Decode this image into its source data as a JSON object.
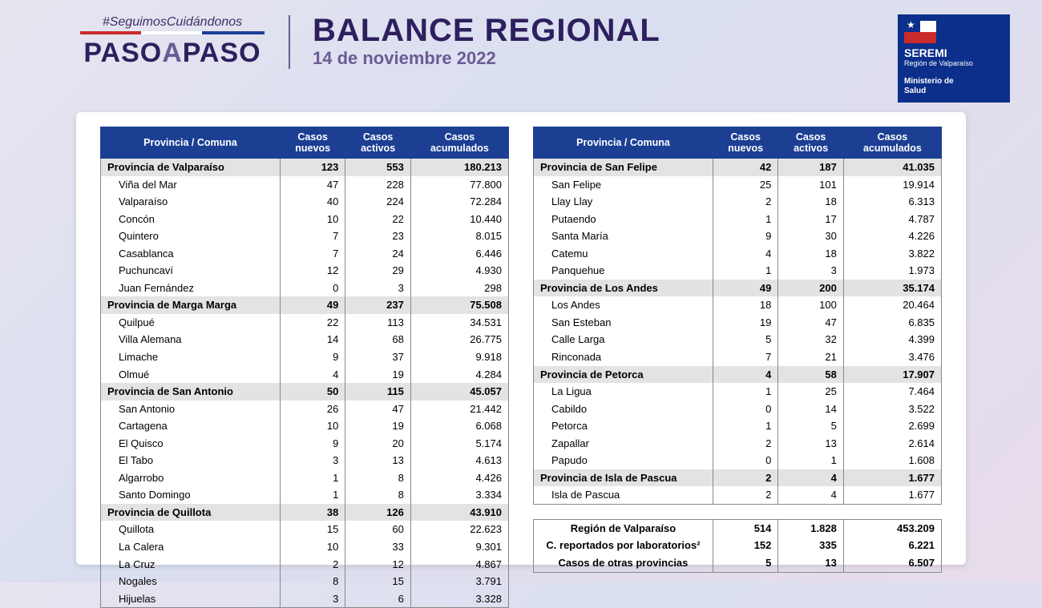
{
  "header": {
    "hashtag": "#SeguimosCuidándonos",
    "logo_paso": "PASO",
    "logo_a": "A",
    "logo_paso2": "PASO",
    "title": "BALANCE REGIONAL",
    "date": "14 de noviembre 2022"
  },
  "seremi": {
    "line1": "SEREMI",
    "line2": "Región de Valparaíso",
    "line3": "Ministerio de",
    "line4": "Salud"
  },
  "columns": {
    "c1": "Provincia / Comuna",
    "c2": "Casos nuevos",
    "c3": "Casos activos",
    "c4": "Casos acumulados"
  },
  "left_rows": [
    {
      "p": true,
      "name": "Provincia de Valparaíso",
      "n": "123",
      "a": "553",
      "ac": "180.213"
    },
    {
      "name": "Viña del Mar",
      "n": "47",
      "a": "228",
      "ac": "77.800"
    },
    {
      "name": "Valparaíso",
      "n": "40",
      "a": "224",
      "ac": "72.284"
    },
    {
      "name": "Concón",
      "n": "10",
      "a": "22",
      "ac": "10.440"
    },
    {
      "name": "Quintero",
      "n": "7",
      "a": "23",
      "ac": "8.015"
    },
    {
      "name": "Casablanca",
      "n": "7",
      "a": "24",
      "ac": "6.446"
    },
    {
      "name": "Puchuncaví",
      "n": "12",
      "a": "29",
      "ac": "4.930"
    },
    {
      "name": "Juan Fernández",
      "n": "0",
      "a": "3",
      "ac": "298"
    },
    {
      "p": true,
      "name": "Provincia de Marga Marga",
      "n": "49",
      "a": "237",
      "ac": "75.508"
    },
    {
      "name": "Quilpué",
      "n": "22",
      "a": "113",
      "ac": "34.531"
    },
    {
      "name": "Villa Alemana",
      "n": "14",
      "a": "68",
      "ac": "26.775"
    },
    {
      "name": "Limache",
      "n": "9",
      "a": "37",
      "ac": "9.918"
    },
    {
      "name": "Olmué",
      "n": "4",
      "a": "19",
      "ac": "4.284"
    },
    {
      "p": true,
      "name": "Provincia de San Antonio",
      "n": "50",
      "a": "115",
      "ac": "45.057"
    },
    {
      "name": "San Antonio",
      "n": "26",
      "a": "47",
      "ac": "21.442"
    },
    {
      "name": "Cartagena",
      "n": "10",
      "a": "19",
      "ac": "6.068"
    },
    {
      "name": "El Quisco",
      "n": "9",
      "a": "20",
      "ac": "5.174"
    },
    {
      "name": "El Tabo",
      "n": "3",
      "a": "13",
      "ac": "4.613"
    },
    {
      "name": "Algarrobo",
      "n": "1",
      "a": "8",
      "ac": "4.426"
    },
    {
      "name": "Santo Domingo",
      "n": "1",
      "a": "8",
      "ac": "3.334"
    },
    {
      "p": true,
      "name": "Provincia de Quillota",
      "n": "38",
      "a": "126",
      "ac": "43.910"
    },
    {
      "name": "Quillota",
      "n": "15",
      "a": "60",
      "ac": "22.623"
    },
    {
      "name": "La Calera",
      "n": "10",
      "a": "33",
      "ac": "9.301"
    },
    {
      "name": "La Cruz",
      "n": "2",
      "a": "12",
      "ac": "4.867"
    },
    {
      "name": "Nogales",
      "n": "8",
      "a": "15",
      "ac": "3.791"
    },
    {
      "name": "Hijuelas",
      "n": "3",
      "a": "6",
      "ac": "3.328"
    }
  ],
  "right_rows": [
    {
      "p": true,
      "name": "Provincia de San Felipe",
      "n": "42",
      "a": "187",
      "ac": "41.035"
    },
    {
      "name": "San Felipe",
      "n": "25",
      "a": "101",
      "ac": "19.914"
    },
    {
      "name": "Llay Llay",
      "n": "2",
      "a": "18",
      "ac": "6.313"
    },
    {
      "name": "Putaendo",
      "n": "1",
      "a": "17",
      "ac": "4.787"
    },
    {
      "name": "Santa María",
      "n": "9",
      "a": "30",
      "ac": "4.226"
    },
    {
      "name": "Catemu",
      "n": "4",
      "a": "18",
      "ac": "3.822"
    },
    {
      "name": "Panquehue",
      "n": "1",
      "a": "3",
      "ac": "1.973"
    },
    {
      "p": true,
      "name": "Provincia de Los Andes",
      "n": "49",
      "a": "200",
      "ac": "35.174"
    },
    {
      "name": "Los Andes",
      "n": "18",
      "a": "100",
      "ac": "20.464"
    },
    {
      "name": "San Esteban",
      "n": "19",
      "a": "47",
      "ac": "6.835"
    },
    {
      "name": "Calle Larga",
      "n": "5",
      "a": "32",
      "ac": "4.399"
    },
    {
      "name": "Rinconada",
      "n": "7",
      "a": "21",
      "ac": "3.476"
    },
    {
      "p": true,
      "name": "Provincia de Petorca",
      "n": "4",
      "a": "58",
      "ac": "17.907"
    },
    {
      "name": "La Ligua",
      "n": "1",
      "a": "25",
      "ac": "7.464"
    },
    {
      "name": "Cabildo",
      "n": "0",
      "a": "14",
      "ac": "3.522"
    },
    {
      "name": "Petorca",
      "n": "1",
      "a": "5",
      "ac": "2.699"
    },
    {
      "name": "Zapallar",
      "n": "2",
      "a": "13",
      "ac": "2.614"
    },
    {
      "name": "Papudo",
      "n": "0",
      "a": "1",
      "ac": "1.608"
    },
    {
      "p": true,
      "name": "Provincia de Isla de Pascua",
      "n": "2",
      "a": "4",
      "ac": "1.677"
    },
    {
      "name": "Isla de Pascua",
      "n": "2",
      "a": "4",
      "ac": "1.677"
    }
  ],
  "summary_rows": [
    {
      "name": "Región de Valparaíso",
      "n": "514",
      "a": "1.828",
      "ac": "453.209"
    },
    {
      "name": "C. reportados por laboratorios²",
      "n": "152",
      "a": "335",
      "ac": "6.221"
    },
    {
      "name": "Casos de otras provincias",
      "n": "5",
      "a": "13",
      "ac": "6.507"
    }
  ],
  "style": {
    "header_bg": "#1c3f94",
    "province_bg": "#e3e3e3",
    "text_color": "#000000",
    "title_color": "#2e1f5e",
    "subtitle_color": "#6b5b95",
    "font_size_table": 13,
    "font_size_title": 40
  }
}
